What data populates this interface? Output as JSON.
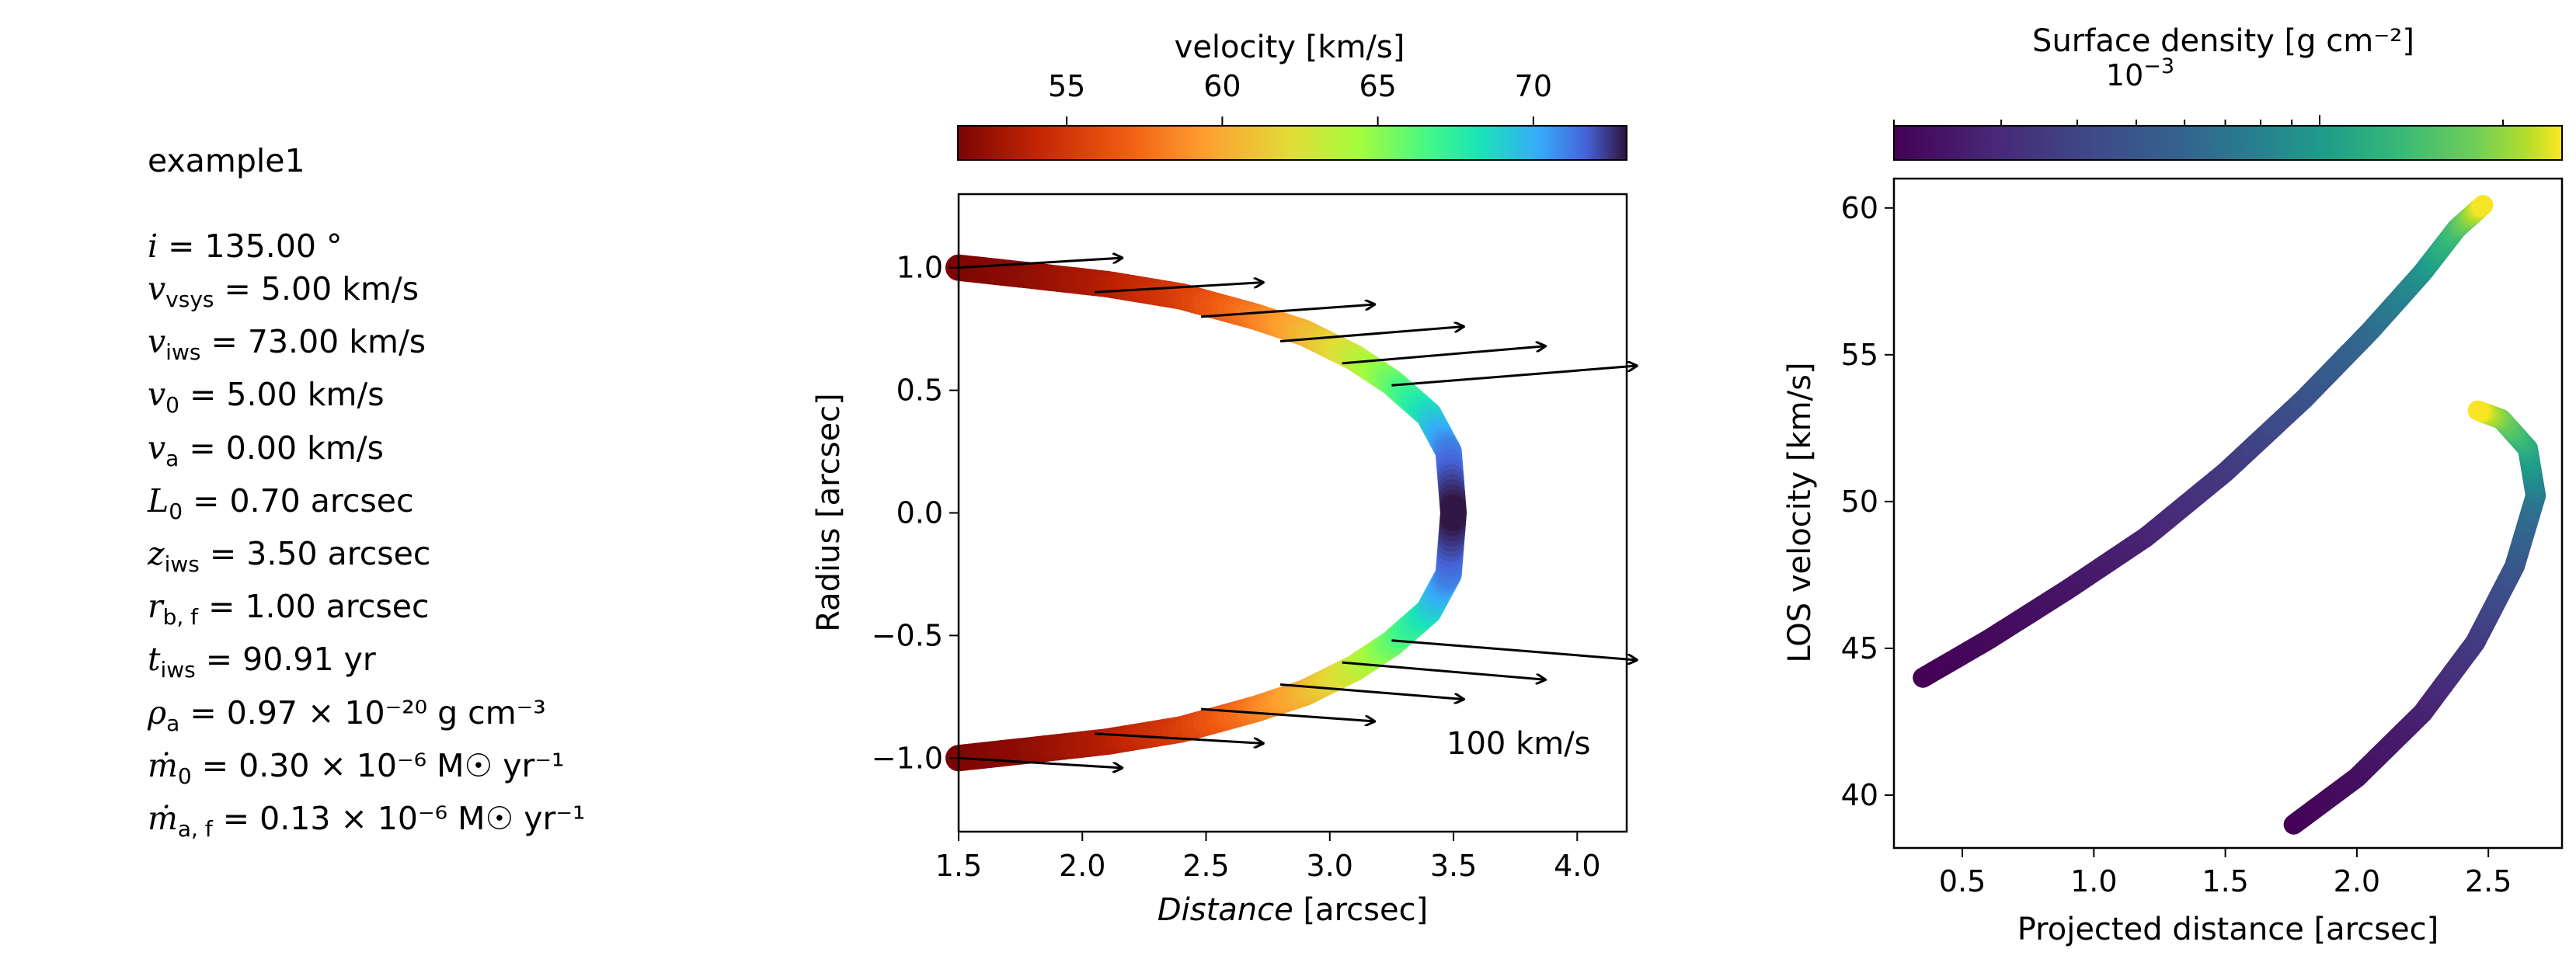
{
  "parameters": {
    "model_name": "example1",
    "rows": [
      {
        "sym": "i",
        "sub": "",
        "text": " = 135.00 °"
      },
      {
        "sym": "v",
        "sub": "vsys",
        "text": " = 5.00 km/s"
      },
      {
        "sym": "v",
        "sub": "iws",
        "text": " = 73.00 km/s"
      },
      {
        "sym": "v",
        "sub": "0",
        "text": " = 5.00 km/s"
      },
      {
        "sym": "v",
        "sub": "a",
        "text": " = 0.00 km/s"
      },
      {
        "sym": "L",
        "sub": "0",
        "text": " = 0.70 arcsec"
      },
      {
        "sym": "z",
        "sub": "iws",
        "text": " = 3.50 arcsec"
      },
      {
        "sym": "r",
        "sub": "b, f",
        "text": " = 1.00 arcsec"
      },
      {
        "sym": "t",
        "sub": "iws",
        "text": " = 90.91 yr"
      },
      {
        "sym": "ρ",
        "sub": "a",
        "text": " = 0.97 × 10⁻²⁰ g cm⁻³"
      },
      {
        "sym": "ṁ",
        "sub": "0",
        "text": " = 0.30 × 10⁻⁶ M☉ yr⁻¹"
      },
      {
        "sym": "ṁ",
        "sub": "a, f",
        "text": " = 0.13 × 10⁻⁶ M☉ yr⁻¹"
      }
    ]
  },
  "chart_data": [
    {
      "type": "line",
      "subtype": "shell-shape",
      "xlabel_italic": "Distance",
      "xlabel_rest": " [arcsec]",
      "ylabel": "Radius [arcsec]",
      "xlim": [
        1.5,
        4.2
      ],
      "ylim": [
        -1.3,
        1.3
      ],
      "xticks": [
        1.5,
        2.0,
        2.5,
        3.0,
        3.5,
        4.0
      ],
      "xtick_labels": [
        "1.5",
        "2.0",
        "2.5",
        "3.0",
        "3.5",
        "4.0"
      ],
      "yticks": [
        -1.0,
        -0.5,
        0.0,
        0.5,
        1.0
      ],
      "ytick_labels": [
        "−1.0",
        "−0.5",
        "0.0",
        "0.5",
        "1.0"
      ],
      "colorbar": {
        "label": "velocity [km/s]",
        "range": [
          51.5,
          73
        ],
        "ticks": [
          55,
          60,
          65,
          70
        ],
        "tick_labels": [
          "55",
          "60",
          "65",
          "70"
        ],
        "colormap": "turbo_r"
      },
      "shell": {
        "points": [
          {
            "x": 1.5,
            "r": 1.0,
            "v": 51.5
          },
          {
            "x": 1.8,
            "r": 0.967,
            "v": 52.2
          },
          {
            "x": 2.1,
            "r": 0.933,
            "v": 53.4
          },
          {
            "x": 2.4,
            "r": 0.883,
            "v": 55.2
          },
          {
            "x": 2.7,
            "r": 0.8,
            "v": 58.0
          },
          {
            "x": 2.9,
            "r": 0.733,
            "v": 60.3
          },
          {
            "x": 3.1,
            "r": 0.633,
            "v": 63.0
          },
          {
            "x": 3.25,
            "r": 0.533,
            "v": 65.5
          },
          {
            "x": 3.4,
            "r": 0.4,
            "v": 68.5
          },
          {
            "x": 3.48,
            "r": 0.25,
            "v": 71.0
          },
          {
            "x": 3.5,
            "r": 0.0,
            "v": 73.0
          }
        ]
      },
      "arrows": {
        "scale_label": "100 km/s",
        "vectors": [
          {
            "x": 1.5,
            "r": 1.0,
            "dx": 0.66,
            "dr": 0.04
          },
          {
            "x": 2.05,
            "r": 0.9,
            "dx": 0.68,
            "dr": 0.04
          },
          {
            "x": 2.48,
            "r": 0.8,
            "dx": 0.7,
            "dr": 0.05
          },
          {
            "x": 2.8,
            "r": 0.7,
            "dx": 0.74,
            "dr": 0.06
          },
          {
            "x": 3.05,
            "r": 0.61,
            "dx": 0.82,
            "dr": 0.07
          },
          {
            "x": 3.25,
            "r": 0.52,
            "dx": 0.99,
            "dr": 0.08
          }
        ]
      }
    },
    {
      "type": "scatter",
      "subtype": "position-velocity",
      "xlabel": "Projected distance [arcsec]",
      "ylabel": "LOS velocity [km/s]",
      "xlim": [
        0.24,
        2.78
      ],
      "ylim": [
        38.2,
        61.0
      ],
      "xticks": [
        0.5,
        1.0,
        1.5,
        2.0,
        2.5
      ],
      "xtick_labels": [
        "0.5",
        "1.0",
        "1.5",
        "2.0",
        "2.5"
      ],
      "yticks": [
        40,
        45,
        50,
        55,
        60
      ],
      "ytick_labels": [
        "40",
        "45",
        "50",
        "55",
        "60"
      ],
      "colorbar": {
        "label": "Surface density [g cm⁻²]",
        "scale": "log",
        "tick_label_base": "10",
        "tick_label_exp": "−3",
        "colormap": "viridis"
      },
      "branches": [
        {
          "points": [
            {
              "x": 0.35,
              "y": 44.0,
              "d": 0.0
            },
            {
              "x": 0.6,
              "y": 45.3,
              "d": 0.03
            },
            {
              "x": 0.9,
              "y": 47.0,
              "d": 0.07
            },
            {
              "x": 1.2,
              "y": 48.8,
              "d": 0.13
            },
            {
              "x": 1.5,
              "y": 51.0,
              "d": 0.22
            },
            {
              "x": 1.8,
              "y": 53.5,
              "d": 0.33
            },
            {
              "x": 2.05,
              "y": 55.8,
              "d": 0.45
            },
            {
              "x": 2.25,
              "y": 57.8,
              "d": 0.6
            },
            {
              "x": 2.38,
              "y": 59.3,
              "d": 0.78
            },
            {
              "x": 2.48,
              "y": 60.1,
              "d": 1.0
            }
          ]
        },
        {
          "points": [
            {
              "x": 1.76,
              "y": 39.0,
              "d": 0.0
            },
            {
              "x": 2.0,
              "y": 40.6,
              "d": 0.05
            },
            {
              "x": 2.25,
              "y": 42.8,
              "d": 0.12
            },
            {
              "x": 2.45,
              "y": 45.2,
              "d": 0.22
            },
            {
              "x": 2.6,
              "y": 47.8,
              "d": 0.35
            },
            {
              "x": 2.68,
              "y": 50.2,
              "d": 0.5
            },
            {
              "x": 2.65,
              "y": 51.8,
              "d": 0.68
            },
            {
              "x": 2.55,
              "y": 52.8,
              "d": 0.86
            },
            {
              "x": 2.46,
              "y": 53.1,
              "d": 1.0
            }
          ]
        }
      ]
    }
  ]
}
